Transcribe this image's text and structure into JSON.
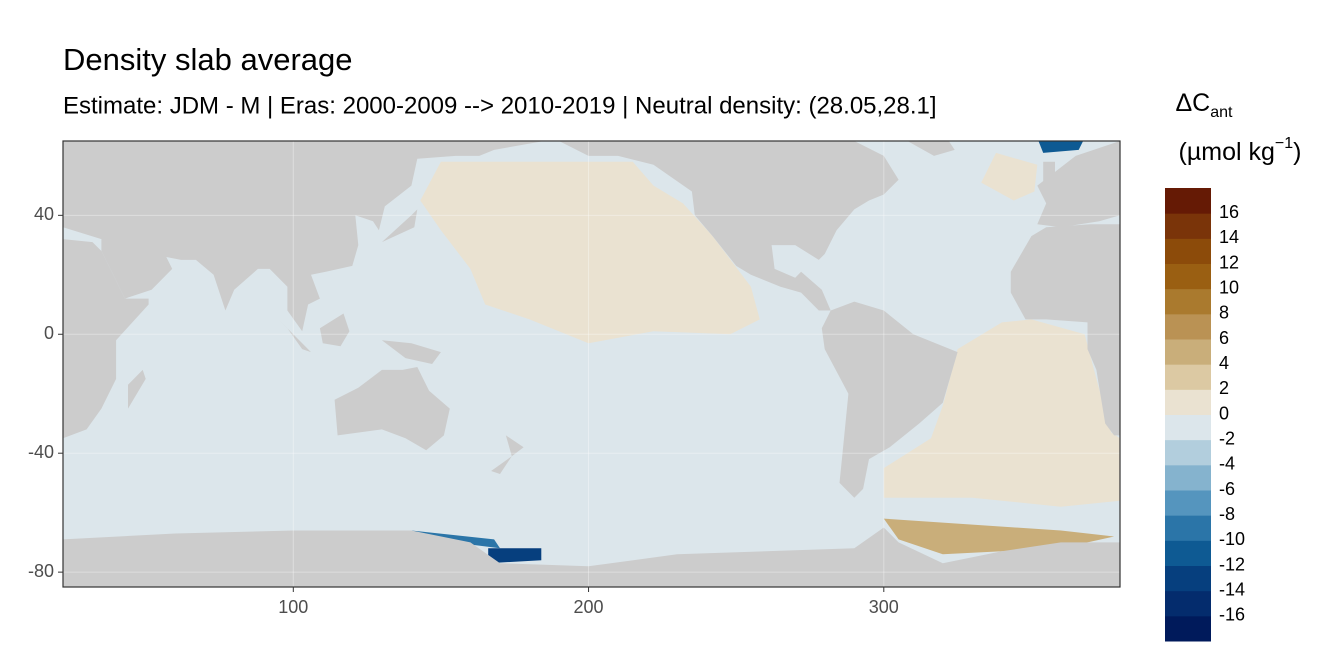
{
  "chart_data": {
    "type": "map",
    "title": "Density slab average",
    "subtitle": "Estimate: JDM - M | Eras: 2000-2009 --> 2010-2019 | Neutral density: (28.05,28.1]",
    "xlim": [
      22,
      380
    ],
    "ylim": [
      -85,
      65
    ],
    "xticks": [
      100,
      200,
      300
    ],
    "yticks": [
      40,
      0,
      -40,
      -80
    ],
    "grid": true,
    "land_color": "#cccccc",
    "regions": [
      {
        "value": -1
      },
      {
        "value": 1
      },
      {
        "value": 1
      },
      {
        "value": 1
      },
      {
        "value": 5
      },
      {
        "value": -9
      },
      {
        "value": -13
      },
      {
        "value": -11
      }
    ],
    "legend": {
      "title_main": "ΔC",
      "title_sub": "ant",
      "unit": "(µmol kg",
      "unit_sup": "−1",
      "unit_end": ")",
      "lim": [
        -18,
        18
      ],
      "ticks": [
        16,
        14,
        12,
        10,
        8,
        6,
        4,
        2,
        0,
        -2,
        -4,
        -6,
        -8,
        -10,
        -12,
        -14,
        -16
      ],
      "colors": [
        "#001a5b",
        "#042c6d",
        "#063f7e",
        "#0e5a93",
        "#2b75a8",
        "#5595be",
        "#85b3ce",
        "#b2cedd",
        "#dce6eb",
        "#eae2d1",
        "#dcc9a3",
        "#c9ae7a",
        "#ba9254",
        "#aa7a2e",
        "#9a5f12",
        "#8c4b0a",
        "#7a3409",
        "#651a05"
      ]
    }
  }
}
